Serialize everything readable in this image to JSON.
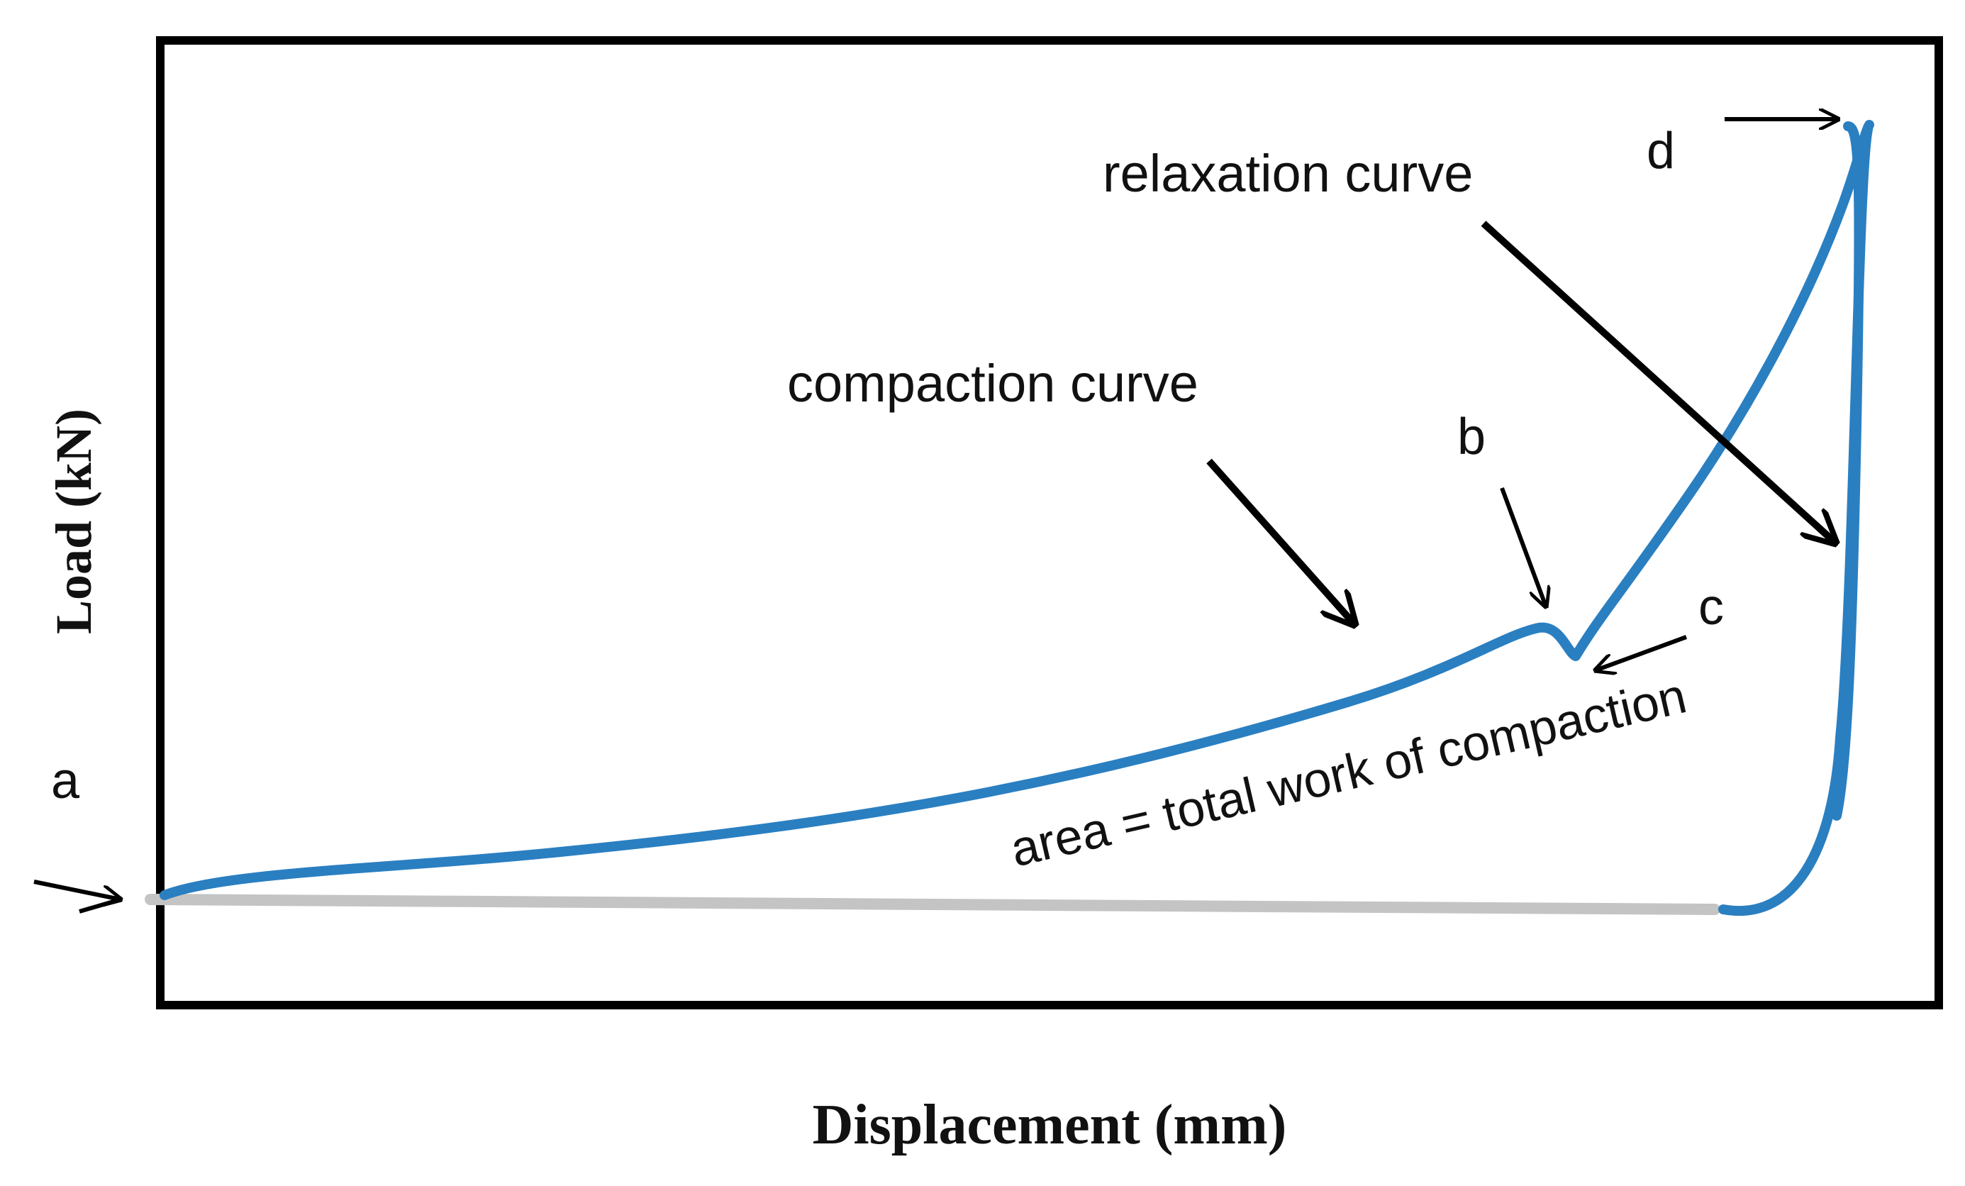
{
  "figure": {
    "y_axis_label": "Load (kN)",
    "x_axis_label": "Displacement (mm)",
    "labels": {
      "compaction_curve": "compaction curve",
      "relaxation_curve": "relaxation curve",
      "area_note": "area = total work of compaction",
      "point_a": "a",
      "point_b": "b",
      "point_c": "c",
      "point_d": "d"
    },
    "colors": {
      "curve": "#2a7fc1",
      "baseline": "#c4c4c4",
      "frame": "#000000",
      "annotation": "#000000"
    }
  }
}
